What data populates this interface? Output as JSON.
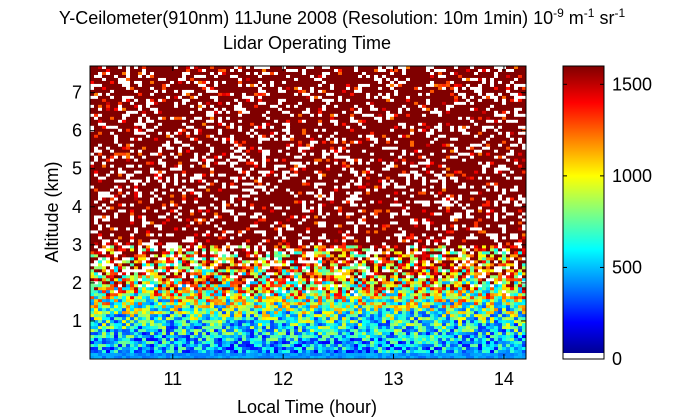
{
  "chart_data": {
    "type": "heatmap",
    "title_main": "Y-Ceilometer(910nm) 11June 2008 (Resolution: 10m 1min) 10",
    "title_exp1": "-9",
    "title_mid": " m",
    "title_exp2": "-1",
    "title_mid2": " sr",
    "title_exp3": "-1",
    "subtitle": "Lidar Operating Time",
    "xlabel": "Local Time (hour)",
    "ylabel": "Altitude (km)",
    "xlim": [
      10.25,
      14.2
    ],
    "ylim": [
      0,
      7.7
    ],
    "x_ticks": [
      11,
      12,
      13,
      14
    ],
    "y_ticks": [
      1,
      2,
      3,
      4,
      5,
      6,
      7
    ],
    "x_tick_labels": [
      "11",
      "12",
      "13",
      "14"
    ],
    "y_tick_labels": [
      "1",
      "2",
      "3",
      "4",
      "5",
      "6",
      "7"
    ],
    "colorbar": {
      "min": 0,
      "max": 1600,
      "ticks": [
        0,
        500,
        1000,
        1500
      ],
      "tick_labels": [
        "0",
        "500",
        "1000",
        "1500"
      ],
      "colormap": "jet",
      "low_color": "#ffffff"
    },
    "x_resolution": "1min",
    "y_resolution": "10m",
    "profile": [
      {
        "altitude_km": 0.1,
        "typical_value": 450
      },
      {
        "altitude_km": 0.5,
        "typical_value": 520
      },
      {
        "altitude_km": 1.0,
        "typical_value": 650
      },
      {
        "altitude_km": 1.5,
        "typical_value": 850
      },
      {
        "altitude_km": 2.0,
        "typical_value": 1100
      },
      {
        "altitude_km": 2.5,
        "typical_value": 1350
      },
      {
        "altitude_km": 3.0,
        "typical_value": 1500
      },
      {
        "altitude_km": 4.0,
        "typical_value": 1600
      },
      {
        "altitude_km": 7.5,
        "typical_value": 1600
      }
    ]
  }
}
